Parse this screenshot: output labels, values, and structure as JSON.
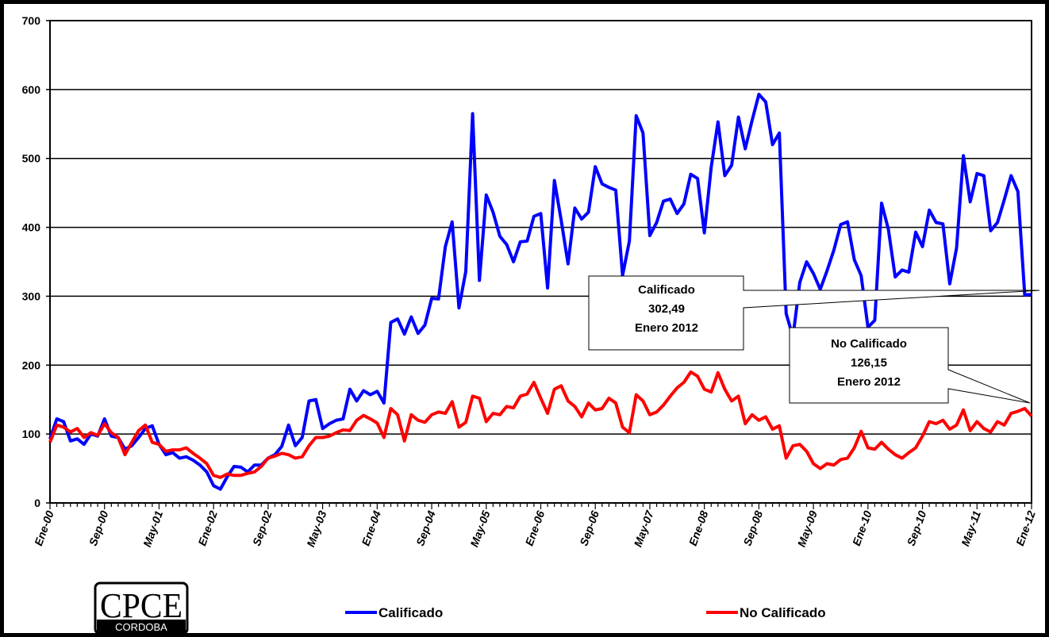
{
  "chart_data": {
    "type": "line",
    "categories": [
      "Ene-00",
      null,
      null,
      null,
      null,
      null,
      null,
      null,
      "Sep-00",
      null,
      null,
      null,
      null,
      null,
      null,
      null,
      "May-01",
      null,
      null,
      null,
      null,
      null,
      null,
      null,
      "Ene-02",
      null,
      null,
      null,
      null,
      null,
      null,
      null,
      "Sep-02",
      null,
      null,
      null,
      null,
      null,
      null,
      null,
      "May-03",
      null,
      null,
      null,
      null,
      null,
      null,
      null,
      "Ene-04",
      null,
      null,
      null,
      null,
      null,
      null,
      null,
      "Sep-04",
      null,
      null,
      null,
      null,
      null,
      null,
      null,
      "May-05",
      null,
      null,
      null,
      null,
      null,
      null,
      null,
      "Ene-06",
      null,
      null,
      null,
      null,
      null,
      null,
      null,
      "Sep-06",
      null,
      null,
      null,
      null,
      null,
      null,
      null,
      "May-07",
      null,
      null,
      null,
      null,
      null,
      null,
      null,
      "Ene-08",
      null,
      null,
      null,
      null,
      null,
      null,
      null,
      "Sep-08",
      null,
      null,
      null,
      null,
      null,
      null,
      null,
      "May-09",
      null,
      null,
      null,
      null,
      null,
      null,
      null,
      "Ene-10",
      null,
      null,
      null,
      null,
      null,
      null,
      null,
      "Sep-10",
      null,
      null,
      null,
      null,
      null,
      null,
      null,
      "May-11",
      null,
      null,
      null,
      null,
      null,
      null,
      null,
      "Ene-12"
    ],
    "series": [
      {
        "name": "Calificado",
        "color": "#0000ff",
        "values": [
          93,
          122,
          118,
          90,
          93,
          85,
          100,
          97,
          122,
          97,
          95,
          78,
          83,
          95,
          108,
          112,
          85,
          70,
          73,
          65,
          67,
          62,
          55,
          45,
          25,
          20,
          38,
          53,
          52,
          45,
          55,
          55,
          65,
          70,
          82,
          113,
          83,
          95,
          148,
          150,
          108,
          115,
          120,
          122,
          165,
          148,
          163,
          157,
          162,
          145,
          262,
          267,
          245,
          270,
          246,
          258,
          297,
          296,
          372,
          408,
          283,
          336,
          565,
          323,
          447,
          422,
          387,
          375,
          350,
          379,
          380,
          416,
          420,
          312,
          468,
          410,
          347,
          428,
          412,
          422,
          488,
          463,
          458,
          454,
          330,
          380,
          562,
          537,
          388,
          407,
          438,
          441,
          420,
          434,
          477,
          471,
          392,
          487,
          553,
          475,
          490,
          560,
          514,
          555,
          593,
          582,
          520,
          537,
          275,
          241,
          320,
          350,
          333,
          310,
          337,
          367,
          404,
          408,
          353,
          330,
          255,
          265,
          435,
          397,
          328,
          338,
          335,
          393,
          372,
          425,
          407,
          405,
          318,
          370,
          504,
          437,
          478,
          475,
          395,
          407,
          440,
          475,
          452,
          302,
          302.49
        ]
      },
      {
        "name": "No Calificado",
        "color": "#ff0000",
        "values": [
          88,
          113,
          110,
          103,
          108,
          95,
          102,
          98,
          115,
          102,
          95,
          70,
          88,
          105,
          113,
          88,
          85,
          75,
          77,
          77,
          80,
          72,
          65,
          57,
          40,
          37,
          42,
          40,
          40,
          43,
          45,
          53,
          65,
          68,
          72,
          70,
          65,
          67,
          83,
          95,
          95,
          97,
          102,
          106,
          105,
          120,
          127,
          122,
          116,
          95,
          137,
          128,
          90,
          128,
          120,
          117,
          128,
          132,
          130,
          147,
          110,
          117,
          155,
          152,
          118,
          130,
          128,
          140,
          138,
          155,
          158,
          175,
          152,
          130,
          165,
          170,
          148,
          140,
          125,
          145,
          135,
          137,
          152,
          145,
          110,
          102,
          157,
          148,
          128,
          132,
          142,
          155,
          167,
          175,
          190,
          184,
          165,
          161,
          189,
          165,
          148,
          155,
          115,
          128,
          120,
          125,
          107,
          112,
          65,
          83,
          85,
          75,
          57,
          50,
          57,
          55,
          63,
          65,
          80,
          104,
          80,
          78,
          88,
          78,
          70,
          65,
          73,
          80,
          97,
          118,
          115,
          120,
          107,
          113,
          135,
          105,
          118,
          108,
          103,
          118,
          113,
          130,
          133,
          137,
          126.15
        ]
      }
    ],
    "ylim": [
      0,
      700
    ],
    "yticks": [
      0,
      100,
      200,
      300,
      400,
      500,
      600,
      700
    ],
    "grid": true,
    "legend": "bottom",
    "annotations": [
      [
        "Calificado",
        "302,49",
        "Enero 2012"
      ],
      [
        "No Calificado",
        "126,15",
        "Enero 2012"
      ]
    ],
    "logo": [
      "CPCE",
      "CORDOBA"
    ]
  }
}
